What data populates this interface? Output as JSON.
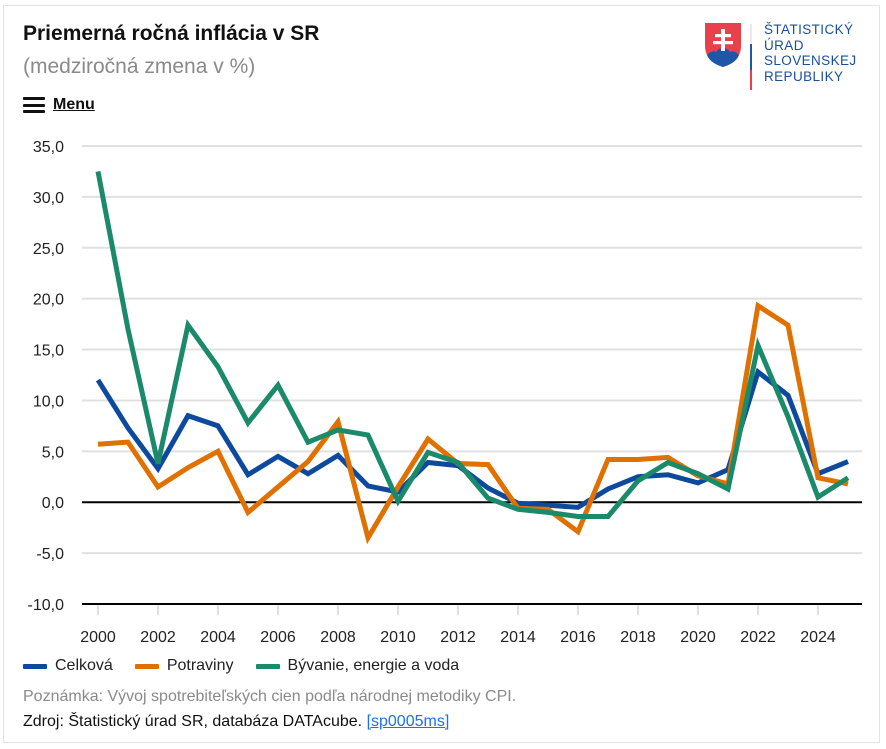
{
  "header": {
    "title": "Priemerná ročná inflácia v SR",
    "subtitle": "(medziročná zmena v %)",
    "menu_label": "Menu",
    "menu_icon": "hamburger-icon"
  },
  "logo": {
    "icon": "slovak-coat-of-arms-icon",
    "lines": [
      "ŠTATISTICKÝ",
      "ÚRAD",
      "SLOVENSKEJ",
      "REPUBLIKY"
    ]
  },
  "footer": {
    "note": "Poznámka: Vývoj spotrebiteľských cien podľa národnej metodiky CPI.",
    "source_prefix": "Zdroj: Štatistický úrad SR, databáza DATAcube. ",
    "source_link": "[sp0005ms]"
  },
  "chart_data": {
    "type": "line",
    "title": "Priemerná ročná inflácia v SR",
    "subtitle": "(medziročná zmena v %)",
    "xlabel": "",
    "ylabel": "",
    "x": [
      2000,
      2001,
      2002,
      2003,
      2004,
      2005,
      2006,
      2007,
      2008,
      2009,
      2010,
      2011,
      2012,
      2013,
      2014,
      2015,
      2016,
      2017,
      2018,
      2019,
      2020,
      2021,
      2022,
      2023,
      2024,
      2025
    ],
    "x_ticks": [
      "2000",
      "2002",
      "2004",
      "2006",
      "2008",
      "2010",
      "2012",
      "2014",
      "2016",
      "2018",
      "2020",
      "2022",
      "2024"
    ],
    "y_ticks": [
      "35,0",
      "30,0",
      "25,0",
      "20,0",
      "15,0",
      "10,0",
      "5,0",
      "0,0",
      "-5,0",
      "-10,0"
    ],
    "ylim": [
      -10,
      35
    ],
    "grid": true,
    "legend_position": "bottom-left",
    "series": [
      {
        "name": "Celková",
        "color": "#0d4a9e",
        "values": [
          12.0,
          7.3,
          3.3,
          8.5,
          7.5,
          2.7,
          4.5,
          2.8,
          4.6,
          1.6,
          1.0,
          3.9,
          3.6,
          1.4,
          -0.1,
          -0.3,
          -0.5,
          1.3,
          2.5,
          2.7,
          1.9,
          3.2,
          12.8,
          10.5,
          2.8,
          4.0
        ]
      },
      {
        "name": "Potraviny",
        "color": "#e07000",
        "values": [
          5.7,
          5.9,
          1.5,
          3.4,
          5.0,
          -1.0,
          1.5,
          4.0,
          7.9,
          -3.5,
          1.5,
          6.2,
          3.8,
          3.7,
          -0.6,
          -0.7,
          -2.9,
          4.2,
          4.2,
          4.4,
          2.6,
          1.8,
          19.3,
          17.4,
          2.4,
          1.8
        ]
      },
      {
        "name": "Bývanie, energie a voda",
        "color": "#1a8a6a",
        "values": [
          32.5,
          17.0,
          3.8,
          17.4,
          13.3,
          7.8,
          11.5,
          5.9,
          7.1,
          6.6,
          0.1,
          4.9,
          3.9,
          0.4,
          -0.7,
          -1.0,
          -1.4,
          -1.4,
          2.1,
          3.9,
          2.8,
          1.3,
          15.4,
          8.4,
          0.5,
          2.4
        ]
      }
    ]
  }
}
